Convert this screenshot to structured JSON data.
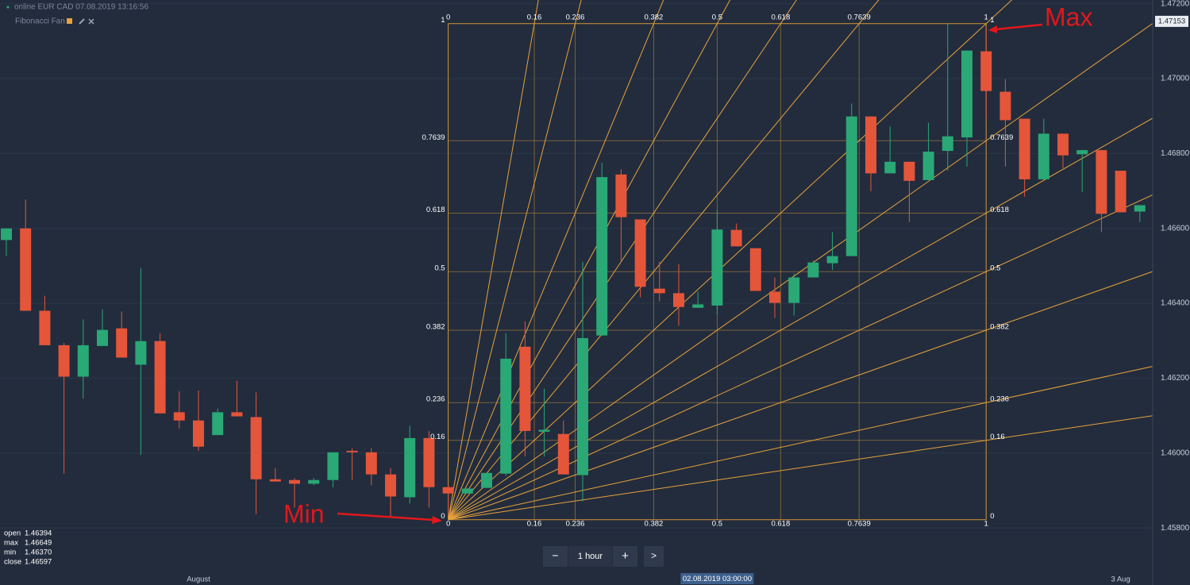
{
  "ui": {
    "header": "online EUR CAD 07.08.2019 13:16:56",
    "tool": "Fibonacci Fan",
    "info": [
      {
        "label": "open",
        "value": "1.46394"
      },
      {
        "label": "max",
        "value": "1.46649"
      },
      {
        "label": "min",
        "value": "1.46370"
      },
      {
        "label": "close",
        "value": "1.46597"
      }
    ],
    "controls": [
      "−",
      "1 hour",
      "+",
      ">"
    ]
  },
  "chart_data": {
    "type": "candlestick",
    "up_color": "#2aa876",
    "down_color": "#e5553a",
    "fan_color": "#e8a23a",
    "categories": [
      null,
      null,
      null,
      null,
      null,
      null,
      null,
      null,
      null,
      null,
      "August",
      null,
      null,
      null,
      null,
      null,
      null,
      null,
      null,
      null,
      null,
      null,
      null,
      null,
      null,
      null,
      null,
      null,
      null,
      null,
      null,
      null,
      null,
      null,
      null,
      null,
      null,
      null,
      null,
      null,
      null,
      null,
      null,
      null,
      null,
      null,
      null,
      null,
      null,
      null,
      null,
      null,
      null,
      null,
      null,
      null,
      null,
      null,
      "3 Aug",
      null
    ],
    "open": [
      1.46569,
      1.466,
      1.4638,
      1.46288,
      1.46204,
      1.46286,
      1.46333,
      1.46236,
      1.46299,
      1.46109,
      1.46087,
      1.46048,
      1.46109,
      1.46096,
      1.4593,
      1.45928,
      1.45918,
      1.45928,
      1.46006,
      1.46002,
      1.45943,
      1.45882,
      1.4604,
      1.45909,
      1.45892,
      1.45907,
      1.45945,
      1.46284,
      1.46057,
      1.46051,
      1.45941,
      1.46314,
      1.46744,
      1.46624,
      1.46439,
      1.46427,
      1.46388,
      1.46394,
      1.46596,
      1.46547,
      1.46431,
      1.46401,
      1.46469,
      1.46507,
      1.46526,
      1.46899,
      1.46747,
      1.46778,
      1.46729,
      1.46807,
      1.46843,
      1.47073,
      1.46965,
      1.46893,
      1.46731,
      1.46853,
      1.46798,
      1.46809,
      1.46754,
      1.46645
    ],
    "high": [
      1.466,
      1.46677,
      1.4642,
      1.46294,
      1.46357,
      1.46384,
      1.46378,
      1.46494,
      1.4632,
      1.46165,
      1.46167,
      1.46119,
      1.46193,
      1.46162,
      1.4596,
      1.45933,
      1.45933,
      1.46002,
      1.46013,
      1.46013,
      1.4596,
      1.46073,
      1.46059,
      1.45914,
      1.45907,
      1.45947,
      1.4632,
      1.46352,
      1.46172,
      1.46087,
      1.46511,
      1.46775,
      1.46758,
      1.46624,
      1.46511,
      1.46505,
      1.46431,
      1.46649,
      1.46613,
      1.46547,
      1.46469,
      1.46479,
      1.46514,
      1.4659,
      1.46933,
      1.46899,
      1.46872,
      1.46778,
      1.46882,
      1.47147,
      1.47075,
      1.47137,
      1.46999,
      1.46893,
      1.46893,
      1.46853,
      1.46809,
      1.46809,
      1.46754,
      1.46662
    ],
    "low": [
      1.46526,
      1.4638,
      1.46288,
      1.45945,
      1.46145,
      1.46286,
      1.46255,
      1.45995,
      1.46106,
      1.46066,
      1.46006,
      1.46048,
      1.46098,
      1.45837,
      1.45924,
      1.45854,
      1.45914,
      1.45909,
      1.45928,
      1.45914,
      1.45827,
      1.45865,
      1.45854,
      1.45833,
      1.45892,
      1.45907,
      1.45939,
      1.45991,
      1.45991,
      1.45943,
      1.45871,
      1.46314,
      1.46511,
      1.46416,
      1.46405,
      1.4634,
      1.46388,
      1.4637,
      1.46552,
      1.46433,
      1.46361,
      1.46367,
      1.46469,
      1.46489,
      1.46526,
      1.46699,
      1.46747,
      1.46617,
      1.46729,
      1.46754,
      1.46765,
      1.46893,
      1.46765,
      1.46685,
      1.46731,
      1.46761,
      1.46697,
      1.4659,
      1.46643,
      1.46617
    ],
    "close": [
      1.466,
      1.4638,
      1.46288,
      1.46204,
      1.46288,
      1.46329,
      1.46255,
      1.46299,
      1.46106,
      1.46087,
      1.46017,
      1.46109,
      1.46098,
      1.4593,
      1.45924,
      1.45918,
      1.45928,
      1.46002,
      1.46002,
      1.45943,
      1.45884,
      1.4604,
      1.45909,
      1.45892,
      1.45905,
      1.45947,
      1.46252,
      1.46059,
      1.46062,
      1.45943,
      1.46307,
      1.46737,
      1.4663,
      1.46444,
      1.46427,
      1.4639,
      1.46397,
      1.46597,
      1.46552,
      1.46433,
      1.46401,
      1.46469,
      1.46509,
      1.46526,
      1.46899,
      1.46747,
      1.46778,
      1.46727,
      1.46805,
      1.46846,
      1.47075,
      1.46967,
      1.46889,
      1.46731,
      1.46853,
      1.46795,
      1.46809,
      1.46639,
      1.46643,
      1.46662
    ],
    "ylim": [
      1.4569,
      1.4721
    ],
    "yticks": [
      {
        "value": 1.472,
        "label": "1.47200"
      },
      {
        "value": 1.47,
        "label": "1.47000"
      },
      {
        "value": 1.468,
        "label": "1.46800"
      },
      {
        "value": 1.466,
        "label": "1.46600"
      },
      {
        "value": 1.464,
        "label": "1.46400"
      },
      {
        "value": 1.462,
        "label": "1.46200"
      },
      {
        "value": 1.46,
        "label": "1.46000"
      },
      {
        "value": 1.458,
        "label": "1.45800"
      }
    ],
    "last_price": 1.47153,
    "crosshair": {
      "index": 37,
      "label": "02.08.2019 03:00:00"
    },
    "fib_fan": {
      "start_index": 23,
      "start_price": 1.45822,
      "end_index": 51,
      "end_price": 1.47147,
      "levels": [
        0,
        0.16,
        0.236,
        0.382,
        0.5,
        0.618,
        0.7639,
        1
      ]
    },
    "annotations": [
      "Max",
      "Min"
    ]
  }
}
